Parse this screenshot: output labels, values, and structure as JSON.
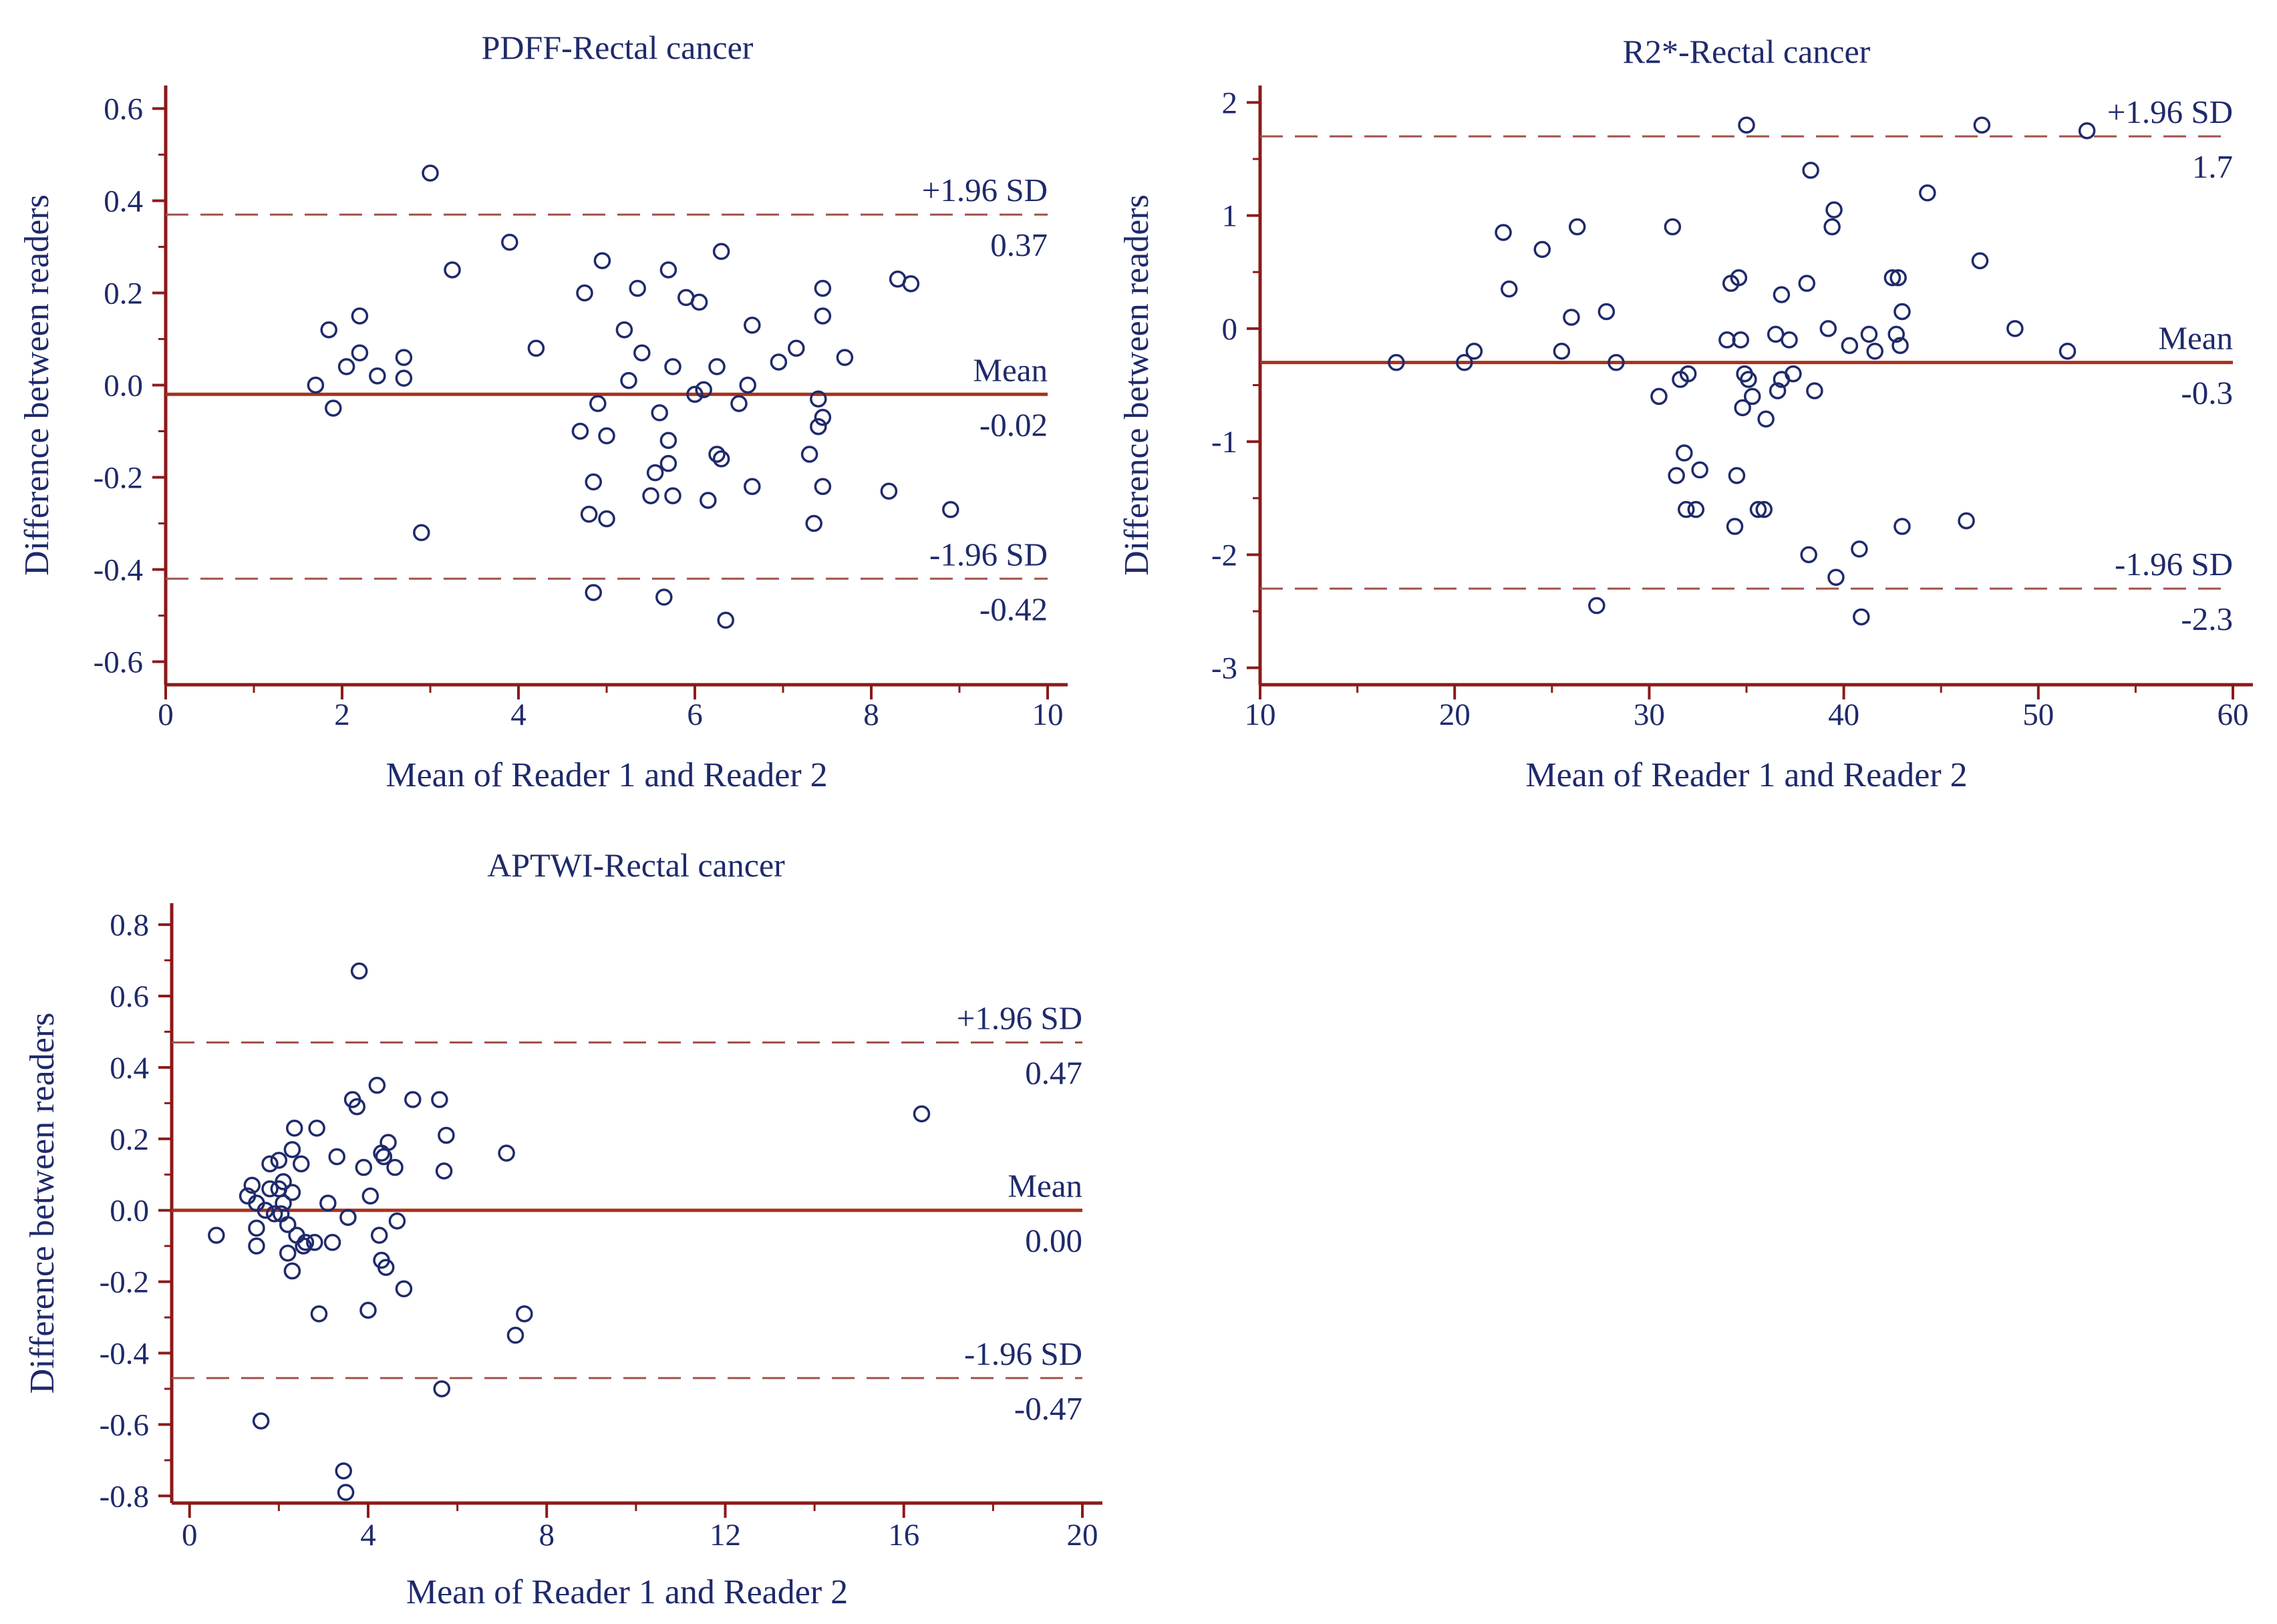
{
  "colors": {
    "axis": "#8b1a1a",
    "mean_line": "#a8321e",
    "limit_line": "#a0524a",
    "point": "#1f2a6b",
    "text": "#1f2a6b"
  },
  "chart_data": [
    {
      "type": "scatter",
      "title": "PDFF-Rectal cancer",
      "xlabel": "Mean of Reader 1 and Reader 2",
      "ylabel": "Difference between readers",
      "xlim": [
        0,
        10
      ],
      "ylim": [
        -0.65,
        0.65
      ],
      "xticks": [
        "0",
        "2",
        "4",
        "6",
        "8",
        "10"
      ],
      "yticks": [
        "0.6",
        "0.4",
        "0.2",
        "0.0",
        "-0.2",
        "-0.4",
        "-0.6"
      ],
      "reference_lines": {
        "upper": {
          "label": "+1.96 SD",
          "value_text": "0.37",
          "y": 0.37
        },
        "mean": {
          "label": "Mean",
          "value_text": "-0.02",
          "y": -0.02
        },
        "lower": {
          "label": "-1.96 SD",
          "value_text": "-0.42",
          "y": -0.42
        }
      },
      "points": [
        [
          1.7,
          0.0
        ],
        [
          1.85,
          0.12
        ],
        [
          1.9,
          -0.05
        ],
        [
          2.05,
          0.04
        ],
        [
          2.2,
          0.07
        ],
        [
          2.2,
          0.15
        ],
        [
          2.4,
          0.02
        ],
        [
          2.7,
          0.06
        ],
        [
          2.7,
          0.015
        ],
        [
          2.9,
          -0.32
        ],
        [
          3.0,
          0.46
        ],
        [
          3.25,
          0.25
        ],
        [
          3.9,
          0.31
        ],
        [
          4.2,
          0.08
        ],
        [
          4.7,
          -0.1
        ],
        [
          4.75,
          0.2
        ],
        [
          4.8,
          -0.28
        ],
        [
          4.85,
          -0.21
        ],
        [
          4.85,
          -0.45
        ],
        [
          4.9,
          -0.04
        ],
        [
          4.95,
          0.27
        ],
        [
          5.0,
          -0.29
        ],
        [
          5.0,
          -0.11
        ],
        [
          5.2,
          0.12
        ],
        [
          5.25,
          0.01
        ],
        [
          5.35,
          0.21
        ],
        [
          5.4,
          0.07
        ],
        [
          5.5,
          -0.24
        ],
        [
          5.55,
          -0.19
        ],
        [
          5.6,
          -0.06
        ],
        [
          5.65,
          -0.46
        ],
        [
          5.7,
          -0.17
        ],
        [
          5.7,
          -0.12
        ],
        [
          5.7,
          0.25
        ],
        [
          5.75,
          -0.24
        ],
        [
          5.75,
          0.04
        ],
        [
          5.9,
          0.19
        ],
        [
          6.0,
          -0.02
        ],
        [
          6.05,
          0.18
        ],
        [
          6.1,
          -0.01
        ],
        [
          6.15,
          -0.25
        ],
        [
          6.25,
          0.04
        ],
        [
          6.25,
          -0.15
        ],
        [
          6.3,
          -0.16
        ],
        [
          6.3,
          0.29
        ],
        [
          6.35,
          -0.51
        ],
        [
          6.5,
          -0.04
        ],
        [
          6.6,
          0.0
        ],
        [
          6.65,
          0.13
        ],
        [
          6.65,
          -0.22
        ],
        [
          6.95,
          0.05
        ],
        [
          7.15,
          0.08
        ],
        [
          7.3,
          -0.15
        ],
        [
          7.35,
          -0.3
        ],
        [
          7.4,
          -0.03
        ],
        [
          7.4,
          -0.09
        ],
        [
          7.45,
          0.21
        ],
        [
          7.45,
          0.15
        ],
        [
          7.45,
          -0.07
        ],
        [
          7.45,
          -0.22
        ],
        [
          7.7,
          0.06
        ],
        [
          8.2,
          -0.23
        ],
        [
          8.3,
          0.23
        ],
        [
          8.45,
          0.22
        ],
        [
          8.9,
          -0.27
        ]
      ]
    },
    {
      "type": "scatter",
      "title": "R2*-Rectal cancer",
      "xlabel": "Mean of Reader 1 and Reader 2",
      "ylabel": "Difference between readers",
      "xlim": [
        10,
        60
      ],
      "ylim": [
        -3.15,
        2.15
      ],
      "xticks": [
        "10",
        "20",
        "30",
        "40",
        "50",
        "60"
      ],
      "yticks": [
        "2",
        "1",
        "0",
        "-1",
        "-2",
        "-3"
      ],
      "reference_lines": {
        "upper": {
          "label": "+1.96 SD",
          "value_text": "1.7",
          "y": 1.7
        },
        "mean": {
          "label": "Mean",
          "value_text": "-0.3",
          "y": -0.3
        },
        "lower": {
          "label": "-1.96 SD",
          "value_text": "-2.3",
          "y": -2.3
        }
      },
      "points": [
        [
          17.0,
          -0.3
        ],
        [
          20.5,
          -0.3
        ],
        [
          21.0,
          -0.2
        ],
        [
          22.5,
          0.85
        ],
        [
          22.8,
          0.35
        ],
        [
          24.5,
          0.7
        ],
        [
          25.5,
          -0.2
        ],
        [
          26.0,
          0.1
        ],
        [
          26.3,
          0.9
        ],
        [
          27.3,
          -2.45
        ],
        [
          27.8,
          0.15
        ],
        [
          28.3,
          -0.3
        ],
        [
          30.5,
          -0.6
        ],
        [
          31.2,
          0.9
        ],
        [
          31.4,
          -1.3
        ],
        [
          31.6,
          -0.45
        ],
        [
          31.8,
          -1.1
        ],
        [
          31.9,
          -1.6
        ],
        [
          32.0,
          -0.4
        ],
        [
          32.4,
          -1.6
        ],
        [
          32.6,
          -1.25
        ],
        [
          34.0,
          -0.1
        ],
        [
          34.2,
          0.4
        ],
        [
          34.4,
          -1.75
        ],
        [
          34.5,
          -1.3
        ],
        [
          34.6,
          0.45
        ],
        [
          34.7,
          -0.1
        ],
        [
          34.8,
          -0.7
        ],
        [
          34.9,
          -0.4
        ],
        [
          35.0,
          1.8
        ],
        [
          35.1,
          -0.45
        ],
        [
          35.3,
          -0.6
        ],
        [
          35.6,
          -1.6
        ],
        [
          35.9,
          -1.6
        ],
        [
          36.0,
          -0.8
        ],
        [
          36.5,
          -0.05
        ],
        [
          36.6,
          -0.55
        ],
        [
          36.8,
          -0.45
        ],
        [
          36.8,
          0.3
        ],
        [
          37.2,
          -0.1
        ],
        [
          37.4,
          -0.4
        ],
        [
          38.1,
          0.4
        ],
        [
          38.2,
          -2.0
        ],
        [
          38.3,
          1.4
        ],
        [
          38.5,
          -0.55
        ],
        [
          39.2,
          0.0
        ],
        [
          39.4,
          0.9
        ],
        [
          39.5,
          1.05
        ],
        [
          39.6,
          -2.2
        ],
        [
          40.3,
          -0.15
        ],
        [
          40.8,
          -1.95
        ],
        [
          40.9,
          -2.55
        ],
        [
          41.3,
          -0.05
        ],
        [
          41.6,
          -0.2
        ],
        [
          42.5,
          0.45
        ],
        [
          42.7,
          -0.05
        ],
        [
          42.8,
          0.45
        ],
        [
          42.9,
          -0.15
        ],
        [
          43.0,
          0.15
        ],
        [
          43.0,
          -1.75
        ],
        [
          44.3,
          1.2
        ],
        [
          46.3,
          -1.7
        ],
        [
          47.0,
          0.6
        ],
        [
          47.1,
          1.8
        ],
        [
          48.8,
          0.0
        ],
        [
          51.5,
          -0.2
        ],
        [
          52.5,
          1.75
        ]
      ]
    },
    {
      "type": "scatter",
      "title": "APTWI-Rectal cancer",
      "xlabel": "Mean of Reader 1 and Reader 2",
      "ylabel": "Difference between readers",
      "xlim": [
        -0.4,
        20
      ],
      "ylim": [
        -0.82,
        0.86
      ],
      "xticks": [
        "0",
        "4",
        "8",
        "12",
        "16",
        "20"
      ],
      "yticks": [
        "0.8",
        "0.6",
        "0.4",
        "0.2",
        "0.0",
        "-0.2",
        "-0.4",
        "-0.6",
        "-0.8"
      ],
      "reference_lines": {
        "upper": {
          "label": "+1.96 SD",
          "value_text": "0.47",
          "y": 0.47
        },
        "mean": {
          "label": "Mean",
          "value_text": "0.00",
          "y": 0.0
        },
        "lower": {
          "label": "-1.96 SD",
          "value_text": "-0.47",
          "y": -0.47
        }
      },
      "points": [
        [
          0.6,
          -0.07
        ],
        [
          1.3,
          0.04
        ],
        [
          1.4,
          0.07
        ],
        [
          1.5,
          -0.05
        ],
        [
          1.5,
          -0.1
        ],
        [
          1.5,
          0.02
        ],
        [
          1.6,
          -0.59
        ],
        [
          1.7,
          0.0
        ],
        [
          1.8,
          0.13
        ],
        [
          1.8,
          0.06
        ],
        [
          1.9,
          -0.01
        ],
        [
          2.0,
          0.14
        ],
        [
          2.0,
          0.06
        ],
        [
          2.05,
          -0.01
        ],
        [
          2.1,
          0.08
        ],
        [
          2.1,
          0.02
        ],
        [
          2.2,
          -0.04
        ],
        [
          2.2,
          -0.12
        ],
        [
          2.3,
          0.05
        ],
        [
          2.3,
          -0.17
        ],
        [
          2.3,
          0.17
        ],
        [
          2.35,
          0.23
        ],
        [
          2.4,
          -0.07
        ],
        [
          2.5,
          0.13
        ],
        [
          2.55,
          -0.1
        ],
        [
          2.6,
          -0.09
        ],
        [
          2.8,
          -0.09
        ],
        [
          2.85,
          0.23
        ],
        [
          2.9,
          -0.29
        ],
        [
          3.1,
          0.02
        ],
        [
          3.2,
          -0.09
        ],
        [
          3.3,
          0.15
        ],
        [
          3.45,
          -0.73
        ],
        [
          3.5,
          -0.79
        ],
        [
          3.55,
          -0.02
        ],
        [
          3.65,
          0.31
        ],
        [
          3.75,
          0.29
        ],
        [
          3.8,
          0.67
        ],
        [
          3.9,
          0.12
        ],
        [
          4.0,
          -0.28
        ],
        [
          4.05,
          0.04
        ],
        [
          4.2,
          0.35
        ],
        [
          4.25,
          -0.07
        ],
        [
          4.3,
          0.16
        ],
        [
          4.3,
          -0.14
        ],
        [
          4.35,
          0.15
        ],
        [
          4.4,
          -0.16
        ],
        [
          4.45,
          0.19
        ],
        [
          4.6,
          0.12
        ],
        [
          4.65,
          -0.03
        ],
        [
          4.8,
          -0.22
        ],
        [
          5.0,
          0.31
        ],
        [
          5.6,
          0.31
        ],
        [
          5.65,
          -0.5
        ],
        [
          5.7,
          0.11
        ],
        [
          5.75,
          0.21
        ],
        [
          7.1,
          0.16
        ],
        [
          7.3,
          -0.35
        ],
        [
          7.5,
          -0.29
        ],
        [
          16.4,
          0.27
        ]
      ]
    }
  ]
}
